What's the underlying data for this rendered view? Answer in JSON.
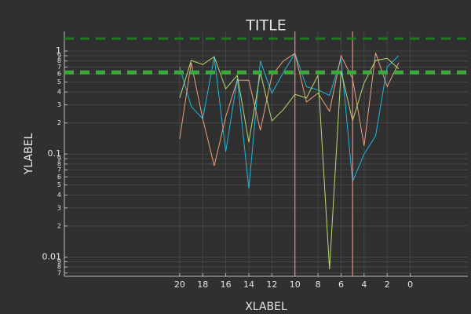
{
  "chart_data": {
    "type": "line",
    "title": "TITLE",
    "x_label": "XLABEL",
    "y_label": "YLABEL",
    "log_y": true,
    "grid": true,
    "x": [
      20,
      19,
      18,
      17,
      16,
      15,
      14,
      13,
      12,
      11,
      10,
      9,
      8,
      7,
      6,
      5,
      4,
      3,
      2,
      1
    ],
    "series": [
      {
        "color": "#1fb8e0",
        "values": [
          0.7,
          0.29,
          0.22,
          0.87,
          0.105,
          0.54,
          0.046,
          0.8,
          0.39,
          0.62,
          0.95,
          0.45,
          0.42,
          0.37,
          0.84,
          0.054,
          0.1,
          0.15,
          0.7,
          0.9
        ]
      },
      {
        "color": "#eda07c",
        "values": [
          0.14,
          0.77,
          0.22,
          0.077,
          0.23,
          0.52,
          0.52,
          0.17,
          0.58,
          0.8,
          0.95,
          0.32,
          0.39,
          0.26,
          0.9,
          0.54,
          0.12,
          0.96,
          0.45,
          0.77
        ]
      },
      {
        "color": "#b8db70",
        "values": [
          0.35,
          0.81,
          0.74,
          0.88,
          0.43,
          0.58,
          0.13,
          0.62,
          0.21,
          0.27,
          0.38,
          0.35,
          0.58,
          0.0076,
          0.64,
          0.21,
          0.49,
          0.81,
          0.85,
          0.67
        ]
      }
    ],
    "hlines": [
      {
        "value": 1.32,
        "color": "#1e7a1e",
        "width": 3
      },
      {
        "value": 0.62,
        "color": "#3ea83e",
        "width": 5
      }
    ],
    "vlines": [
      {
        "value": 10,
        "color": "#f08a80"
      },
      {
        "value": 5,
        "color": "#f08a80"
      }
    ],
    "xlim": [
      30,
      -5
    ],
    "xticks": [
      20,
      18,
      16,
      14,
      12,
      10,
      8,
      6,
      4,
      2,
      0
    ],
    "ylim": [
      0.0065,
      1.55
    ],
    "yticks": [
      1,
      {
        "value": 0.9,
        "label": "9"
      },
      {
        "value": 0.8,
        "label": "8"
      },
      {
        "value": 0.7,
        "label": "7"
      },
      {
        "value": 0.6,
        "label": "6"
      },
      {
        "value": 0.5,
        "label": "5"
      },
      {
        "value": 0.4,
        "label": "4"
      },
      {
        "value": 0.3,
        "label": "3"
      },
      {
        "value": 0.2,
        "label": "2"
      },
      0.1,
      {
        "value": 0.09,
        "label": "9"
      },
      {
        "value": 0.08,
        "label": "8"
      },
      {
        "value": 0.07,
        "label": "7"
      },
      {
        "value": 0.06,
        "label": "6"
      },
      {
        "value": 0.05,
        "label": "5"
      },
      {
        "value": 0.04,
        "label": "4"
      },
      {
        "value": 0.03,
        "label": "3"
      },
      {
        "value": 0.02,
        "label": "2"
      },
      0.01,
      {
        "value": 0.009,
        "label": "9"
      },
      {
        "value": 0.008,
        "label": "8"
      },
      {
        "value": 0.007,
        "label": "7"
      }
    ]
  }
}
